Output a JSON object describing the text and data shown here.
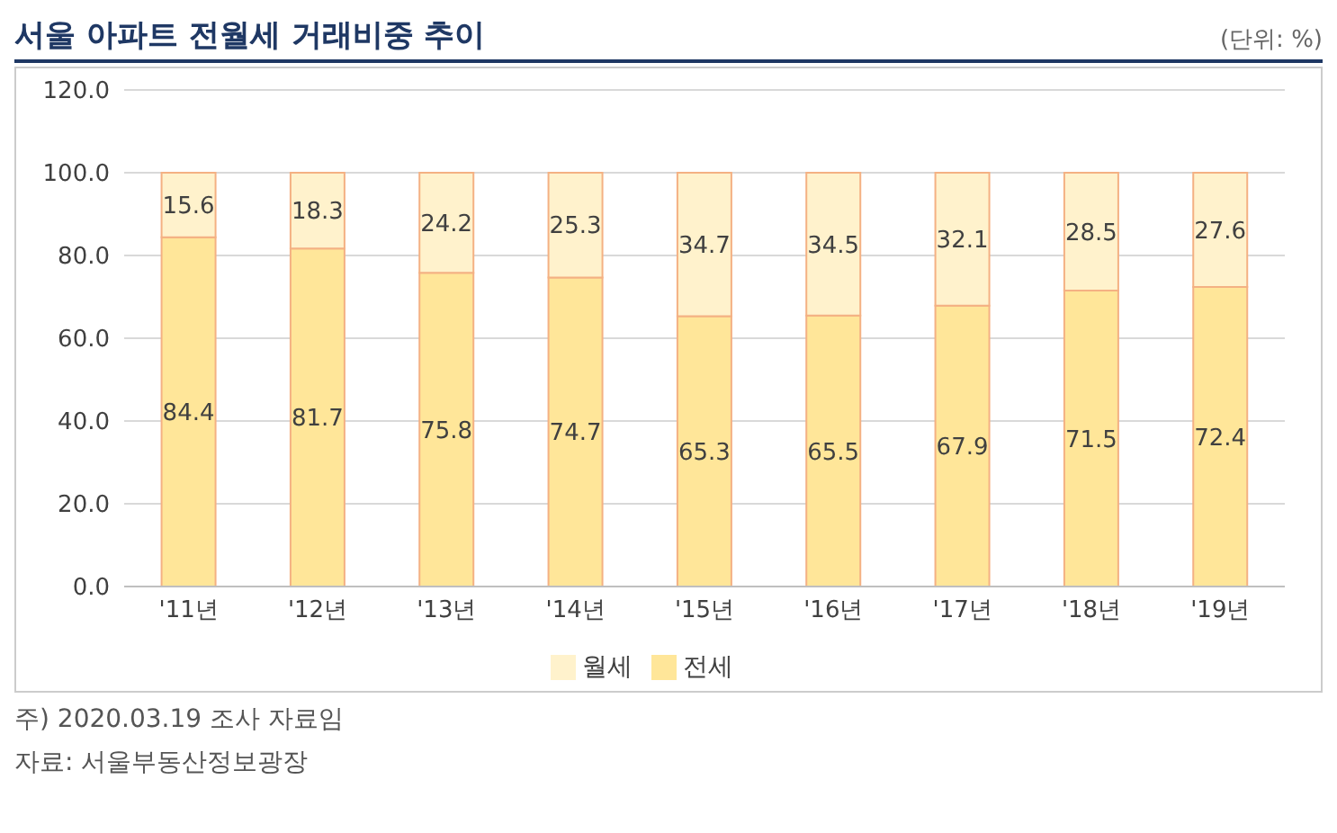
{
  "chart_data": {
    "type": "bar",
    "title": "서울 아파트 전월세 거래비중 추이",
    "subtitle": "(단위: %)",
    "categories": [
      "'11년",
      "'12년",
      "'13년",
      "'14년",
      "'15년",
      "'16년",
      "'17년",
      "'18년",
      "'19년"
    ],
    "series": [
      {
        "name": "전세",
        "color": "#ffe699",
        "values": [
          84.4,
          81.7,
          75.8,
          74.7,
          65.3,
          65.5,
          67.9,
          71.5,
          72.4
        ]
      },
      {
        "name": "월세",
        "color": "#fff2cc",
        "values": [
          15.6,
          18.3,
          24.2,
          25.3,
          34.7,
          34.5,
          32.1,
          28.5,
          27.6
        ]
      }
    ],
    "stacked": true,
    "data_labels": true,
    "ylim": [
      0,
      120
    ],
    "yticks": [
      {
        "value": 0,
        "label": "0.0"
      },
      {
        "value": 20,
        "label": "20.0"
      },
      {
        "value": 40,
        "label": "40.0"
      },
      {
        "value": 60,
        "label": "60.0"
      },
      {
        "value": 80,
        "label": "80.0"
      },
      {
        "value": 100,
        "label": "100.0"
      },
      {
        "value": 120,
        "label": "120.0"
      }
    ],
    "grid": "y",
    "legend": "bottom",
    "annotations": [
      "주) 2020.03.19 조사 자료임",
      "자료: 서울부동산정보광장"
    ]
  }
}
